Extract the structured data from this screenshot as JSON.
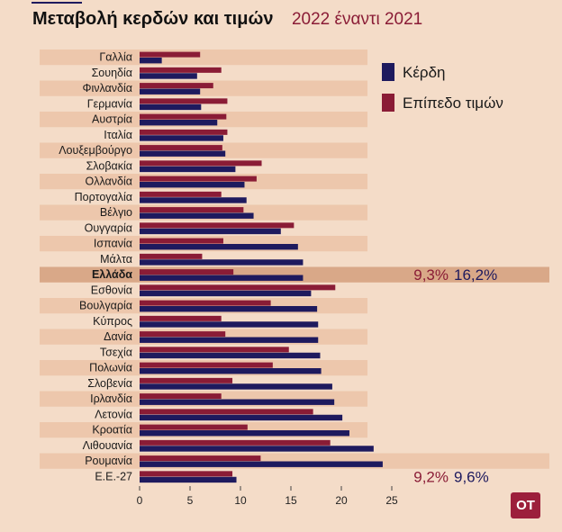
{
  "header": {
    "title": "Μεταβολή κερδών και τιμών",
    "subtitle": "2022 έναντι 2021"
  },
  "badge": {
    "label": "ΟΤ"
  },
  "colors": {
    "background": "#f4dcc8",
    "row_band": "#edc7ac",
    "highlight_band": "#d9a888",
    "profits": "#1e1a5e",
    "prices": "#8a1c36"
  },
  "chart_data": {
    "type": "bar",
    "orientation": "horizontal",
    "categories": [
      "Γαλλία",
      "Σουηδία",
      "Φινλανδία",
      "Γερμανία",
      "Αυστρία",
      "Ιταλία",
      "Λουξεμβούργο",
      "Σλοβακία",
      "Ολλανδία",
      "Πορτογαλία",
      "Βέλγιο",
      "Ουγγαρία",
      "Ισπανία",
      "Μάλτα",
      "Ελλάδα",
      "Εσθονία",
      "Βουλγαρία",
      "Κύπρος",
      "Δανία",
      "Τσεχία",
      "Πολωνία",
      "Σλοβενία",
      "Ιρλανδία",
      "Λετονία",
      "Κροατία",
      "Λιθουανία",
      "Ρουμανία",
      "Ε.Ε.-27"
    ],
    "highlight_category": "Ελλάδα",
    "series": [
      {
        "name": "Επίπεδο τιμών",
        "color": "#8a1c36",
        "values": [
          6.0,
          8.1,
          7.3,
          8.7,
          8.6,
          8.7,
          8.2,
          12.1,
          11.6,
          8.1,
          10.3,
          15.3,
          8.3,
          6.2,
          9.3,
          19.4,
          13.0,
          8.1,
          8.5,
          14.8,
          13.2,
          9.2,
          8.1,
          17.2,
          10.7,
          18.9,
          12.0,
          9.2
        ]
      },
      {
        "name": "Κέρδη",
        "color": "#1e1a5e",
        "values": [
          2.2,
          5.7,
          6.0,
          6.1,
          7.7,
          8.3,
          8.5,
          9.5,
          10.4,
          10.6,
          11.3,
          14.0,
          15.7,
          16.2,
          16.2,
          17.0,
          17.6,
          17.7,
          17.7,
          17.9,
          18.0,
          19.1,
          19.3,
          20.1,
          20.8,
          23.2,
          24.1,
          9.6
        ]
      }
    ],
    "callouts": [
      {
        "category": "Ελλάδα",
        "prices_label": "9,3%",
        "profits_label": "16,2%"
      },
      {
        "category": "Ε.Ε.-27",
        "prices_label": "9,2%",
        "profits_label": "9,6%"
      }
    ],
    "xlim": [
      0,
      25
    ],
    "xticks": [
      0,
      5,
      10,
      15,
      20,
      25
    ],
    "legend": {
      "placement": "top-right",
      "entries": [
        "Κέρδη",
        "Επίπεδο τιμών"
      ]
    }
  }
}
